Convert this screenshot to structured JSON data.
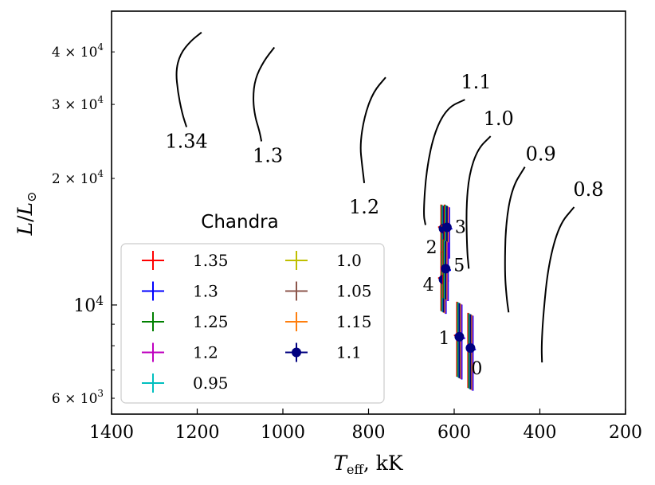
{
  "chart_data": {
    "type": "scatter",
    "xlabel": "T_eff, kK",
    "ylabel": "L/L_⊙",
    "xlim": [
      1400,
      200
    ],
    "ylim": [
      5500,
      50000
    ],
    "yscale": "log",
    "x_ticks": [
      1400,
      1200,
      1000,
      800,
      600,
      400,
      200
    ],
    "y_major_ticks": [
      {
        "value": 10000,
        "label": "10^4"
      }
    ],
    "y_minor_ticks": [
      {
        "value": 6000,
        "label": "6 × 10^3"
      },
      {
        "value": 20000,
        "label": "2 × 10^4"
      },
      {
        "value": 30000,
        "label": "3 × 10^4"
      },
      {
        "value": 40000,
        "label": "4 × 10^4"
      }
    ],
    "tracks": [
      {
        "label": "1.34",
        "points": [
          [
            1190,
            44500
          ],
          [
            1215,
            42500
          ],
          [
            1240,
            39500
          ],
          [
            1250,
            36000
          ],
          [
            1245,
            32000
          ],
          [
            1235,
            28500
          ],
          [
            1225,
            26500
          ]
        ]
      },
      {
        "label": "1.3",
        "points": [
          [
            1020,
            41000
          ],
          [
            1045,
            38000
          ],
          [
            1065,
            34500
          ],
          [
            1070,
            31000
          ],
          [
            1065,
            28000
          ],
          [
            1055,
            26000
          ],
          [
            1050,
            24500
          ]
        ]
      },
      {
        "label": "1.2",
        "points": [
          [
            760,
            34800
          ],
          [
            790,
            32000
          ],
          [
            810,
            28000
          ],
          [
            820,
            24000
          ],
          [
            815,
            21500
          ],
          [
            810,
            19500
          ]
        ]
      },
      {
        "label": "1.1",
        "points": [
          [
            575,
            30800
          ],
          [
            615,
            29500
          ],
          [
            645,
            26000
          ],
          [
            665,
            21000
          ],
          [
            672,
            16500
          ],
          [
            667,
            15500
          ]
        ]
      },
      {
        "label": "1.0",
        "points": [
          [
            515,
            25200
          ],
          [
            545,
            23500
          ],
          [
            565,
            20500
          ],
          [
            572,
            17000
          ],
          [
            570,
            13500
          ],
          [
            566,
            12200
          ]
        ]
      },
      {
        "label": "0.9",
        "points": [
          [
            435,
            21300
          ],
          [
            465,
            19000
          ],
          [
            480,
            15500
          ],
          [
            482,
            12000
          ],
          [
            478,
            10500
          ],
          [
            473,
            9600
          ]
        ]
      },
      {
        "label": "0.8",
        "points": [
          [
            320,
            17100
          ],
          [
            355,
            15500
          ],
          [
            380,
            12500
          ],
          [
            392,
            9500
          ],
          [
            396,
            8000
          ],
          [
            395,
            7300
          ]
        ]
      }
    ],
    "observations": [
      {
        "epoch": "0",
        "teff": 562,
        "lum": 7900,
        "xerr": [
          555,
          565
        ],
        "yerr": [
          6300,
          9500
        ]
      },
      {
        "epoch": "1",
        "teff": 588,
        "lum": 8400,
        "xerr": [
          580,
          595
        ],
        "yerr": [
          6700,
          10100
        ]
      },
      {
        "epoch": "2",
        "teff": 625,
        "lum": 15200,
        "xerr": [
          618,
          632
        ],
        "yerr": [
          13000,
          17200
        ]
      },
      {
        "epoch": "3",
        "teff": 617,
        "lum": 15300,
        "xerr": [
          610,
          625
        ],
        "yerr": [
          13000,
          17200
        ]
      },
      {
        "epoch": "4",
        "teff": 625,
        "lum": 11500,
        "xerr": [
          618,
          632
        ],
        "yerr": [
          9600,
          13300
        ]
      },
      {
        "epoch": "5",
        "teff": 620,
        "lum": 12200,
        "xerr": [
          613,
          627
        ],
        "yerr": [
          10300,
          14200
        ]
      }
    ],
    "legend": {
      "title": "Chandra",
      "location": "lower-left",
      "entries": [
        {
          "label": "1.35",
          "color": "#ff0000"
        },
        {
          "label": "1.3",
          "color": "#0000ff"
        },
        {
          "label": "1.25",
          "color": "#008000"
        },
        {
          "label": "1.2",
          "color": "#bf00bf"
        },
        {
          "label": "0.95",
          "color": "#00bfbf"
        },
        {
          "label": "1.0",
          "color": "#bfbf00"
        },
        {
          "label": "1.05",
          "color": "#8c564b"
        },
        {
          "label": "1.15",
          "color": "#ff7f0e"
        },
        {
          "label": "1.1",
          "color": "#000080"
        }
      ]
    }
  }
}
